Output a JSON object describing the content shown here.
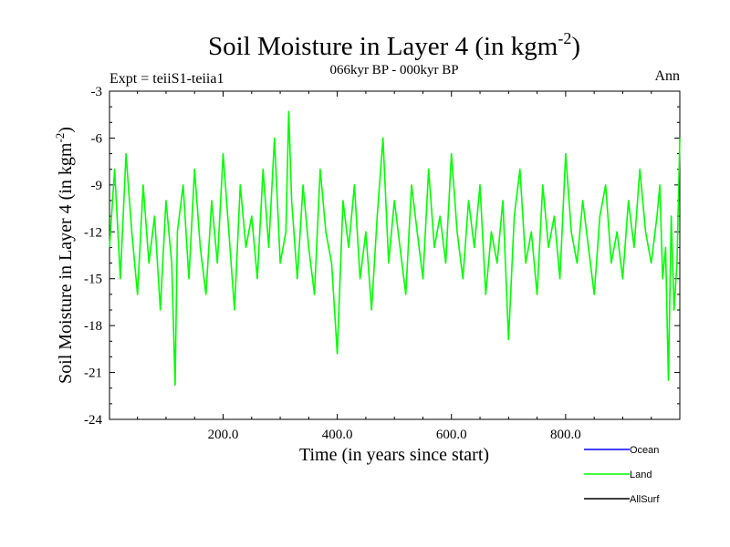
{
  "chart_data": {
    "type": "line",
    "title": "Soil Moisture in Layer 4 (in kgm",
    "title_superscript": "-2",
    "title_suffix": ")",
    "subtitle": "066kyr BP - 000kyr BP",
    "experiment_label": "Expt = teiiS1-teiia1",
    "season_label": "Ann",
    "xlabel": "Time (in years since start)",
    "ylabel": "Soil Moisture in Layer 4 (in kgm",
    "ylabel_superscript": "-2",
    "ylabel_suffix": ")",
    "xlim": [
      1,
      1000
    ],
    "ylim": [
      -24,
      -3
    ],
    "xticks": [
      200,
      400,
      600,
      800
    ],
    "xtick_labels": [
      "200.0",
      "400.0",
      "600.0",
      "800.0"
    ],
    "yticks": [
      -24,
      -21,
      -18,
      -15,
      -12,
      -9,
      -6,
      -3
    ],
    "ytick_labels": [
      "-24",
      "-21",
      "-18",
      "-15",
      "-12",
      "-9",
      "-6",
      "-3"
    ],
    "legend": [
      {
        "name": "Ocean",
        "color": "#0000ff"
      },
      {
        "name": "Land",
        "color": "#00ff00"
      },
      {
        "name": "AllSurf",
        "color": "#000000"
      }
    ],
    "series": [
      {
        "name": "Land",
        "color": "#00ff00",
        "x": [
          1,
          10,
          20,
          30,
          40,
          50,
          60,
          70,
          80,
          90,
          100,
          110,
          116,
          120,
          130,
          140,
          150,
          160,
          170,
          180,
          190,
          200,
          210,
          220,
          230,
          240,
          250,
          260,
          270,
          280,
          290,
          300,
          310,
          315,
          320,
          330,
          340,
          350,
          360,
          370,
          380,
          390,
          400,
          410,
          420,
          430,
          440,
          450,
          460,
          470,
          480,
          490,
          500,
          510,
          520,
          530,
          540,
          550,
          560,
          570,
          580,
          590,
          600,
          610,
          620,
          630,
          640,
          650,
          660,
          670,
          680,
          690,
          700,
          710,
          720,
          730,
          740,
          750,
          760,
          770,
          780,
          790,
          800,
          810,
          820,
          830,
          840,
          850,
          860,
          870,
          880,
          890,
          900,
          910,
          920,
          930,
          940,
          950,
          960,
          965,
          970,
          975,
          980,
          985,
          990,
          995,
          1000
        ],
        "y": [
          -13,
          -8,
          -15,
          -7,
          -12,
          -16,
          -9,
          -14,
          -11,
          -17,
          -10,
          -14,
          -21.8,
          -12,
          -9,
          -15,
          -8,
          -13,
          -16,
          -10,
          -14,
          -7,
          -12,
          -17,
          -9,
          -13,
          -11,
          -15,
          -8,
          -13,
          -6,
          -14,
          -12,
          -4.3,
          -10,
          -15,
          -9,
          -13,
          -16,
          -8,
          -12,
          -14,
          -19.8,
          -10,
          -13,
          -9,
          -15,
          -12,
          -17,
          -11,
          -6,
          -14,
          -10,
          -13,
          -16,
          -9,
          -12,
          -15,
          -8,
          -13,
          -11,
          -14,
          -7,
          -12,
          -15,
          -10,
          -13,
          -9,
          -16,
          -12,
          -14,
          -10,
          -18.9,
          -11,
          -8,
          -14,
          -12,
          -16,
          -9,
          -13,
          -11,
          -15,
          -7,
          -12,
          -14,
          -10,
          -13,
          -16,
          -11,
          -9,
          -14,
          -12,
          -15,
          -10,
          -13,
          -8,
          -12,
          -14,
          -11,
          -9,
          -15,
          -13,
          -21.5,
          -11,
          -17,
          -14,
          -6
        ]
      }
    ],
    "grid": false
  }
}
